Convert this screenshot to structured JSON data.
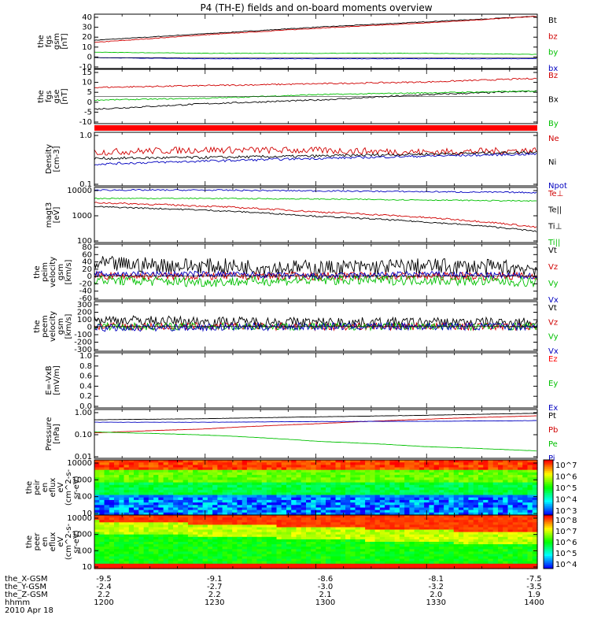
{
  "title": "P4 (TH-E) fields and on-board moments overview",
  "colors": {
    "black": "#000000",
    "red": "#d00000",
    "green": "#00c000",
    "blue": "#0000c0",
    "brightRed": "#ff0000"
  },
  "panels": [
    {
      "id": "fgs-gsm",
      "ylabel": [
        "the",
        "fgs",
        "gsm",
        "[nT]"
      ],
      "ticks": [
        "40",
        "30",
        "20",
        "10",
        "0",
        "-10"
      ],
      "legend": [
        {
          "label": "Bt",
          "color": "black"
        },
        {
          "label": "bz",
          "color": "red"
        },
        {
          "label": "by",
          "color": "green"
        },
        {
          "label": "bx",
          "color": "blue"
        }
      ]
    },
    {
      "id": "fgs-gse",
      "ylabel": [
        "the",
        "fgs",
        "gse",
        "[nT]"
      ],
      "ticks": [
        "15",
        "10",
        "5",
        "0",
        "-5",
        "-10"
      ],
      "legend": [
        {
          "label": "Bz",
          "color": "red"
        },
        {
          "label": "Bx",
          "color": "black"
        },
        {
          "label": "By",
          "color": "green"
        }
      ]
    },
    {
      "id": "density",
      "ylabel": [
        "Density",
        "[cm-3]"
      ],
      "ticks": [
        "1.0",
        "0.1"
      ],
      "legend": [
        {
          "label": "Ne",
          "color": "red"
        },
        {
          "label": "Ni",
          "color": "black"
        },
        {
          "label": "Npot",
          "color": "blue"
        }
      ]
    },
    {
      "id": "temperature",
      "ylabel": [
        "magt3",
        "[eV]"
      ],
      "ticks": [
        "10000",
        "1000",
        "100"
      ],
      "legend": [
        {
          "label": "Te⊥",
          "color": "red"
        },
        {
          "label": "Te||",
          "color": "black"
        },
        {
          "label": "Ti⊥",
          "color": "black"
        },
        {
          "label": "Ti||",
          "color": "green"
        }
      ]
    },
    {
      "id": "peim-velocity",
      "ylabel": [
        "the",
        "peim",
        "velocity",
        "gsm",
        "[km/s]"
      ],
      "ticks": [
        "80",
        "60",
        "40",
        "20",
        "0",
        "-20",
        "-40",
        "-60"
      ],
      "legend": [
        {
          "label": "Vt",
          "color": "black"
        },
        {
          "label": "Vz",
          "color": "red"
        },
        {
          "label": "Vy",
          "color": "green"
        },
        {
          "label": "Vx",
          "color": "blue"
        }
      ]
    },
    {
      "id": "peem-velocity",
      "ylabel": [
        "the",
        "peem",
        "velocity",
        "gsm",
        "[km/s]"
      ],
      "ticks": [
        "300",
        "200",
        "100",
        "0",
        "-100",
        "-200",
        "-300"
      ],
      "legend": [
        {
          "label": "Vt",
          "color": "black"
        },
        {
          "label": "Vz",
          "color": "red"
        },
        {
          "label": "Vy",
          "color": "green"
        },
        {
          "label": "Vx",
          "color": "blue"
        }
      ]
    },
    {
      "id": "exb",
      "ylabel": [
        "E=-VxB",
        "[mV/m]"
      ],
      "ticks": [
        "1.0",
        "0.8",
        "0.6",
        "0.4",
        "0.2",
        "0.0"
      ],
      "legend": [
        {
          "label": "Ez",
          "color": "brightRed"
        },
        {
          "label": "Ey",
          "color": "green"
        },
        {
          "label": "Ex",
          "color": "blue"
        }
      ]
    },
    {
      "id": "pressure",
      "ylabel": [
        "Pressure",
        "[nPa]"
      ],
      "ticks": [
        "1.00",
        "0.10",
        "0.01"
      ],
      "legend": [
        {
          "label": "Pt",
          "color": "black"
        },
        {
          "label": "Pb",
          "color": "red"
        },
        {
          "label": "Pe",
          "color": "green"
        },
        {
          "label": "Pi",
          "color": "blue"
        }
      ]
    },
    {
      "id": "peir-eflux",
      "ylabel": [
        "the",
        "peir",
        "en",
        "eflux",
        "eV",
        "(cm^2-s-",
        "sr-eV)"
      ],
      "ticks": [
        "10000",
        "1000",
        "100",
        "10"
      ],
      "colorbar": [
        "10^7",
        "10^6",
        "10^5",
        "10^4",
        "10^3"
      ]
    },
    {
      "id": "peer-eflux",
      "ylabel": [
        "the",
        "peer",
        "en",
        "eflux",
        "eV",
        "(cm^2-s-",
        "sr-eV)"
      ],
      "ticks": [
        "10000",
        "1000",
        "100",
        "10"
      ],
      "colorbar": [
        "10^8",
        "10^7",
        "10^6",
        "10^5",
        "10^4"
      ]
    }
  ],
  "ephemeris": {
    "rows": [
      {
        "label": "the_X-GSM",
        "values": [
          "-9.5",
          "-9.1",
          "-8.6",
          "-8.1",
          "-7.5"
        ]
      },
      {
        "label": "the_Y-GSM",
        "values": [
          "-2.4",
          "-2.7",
          "-3.0",
          "-3.2",
          "-3.5"
        ]
      },
      {
        "label": "the_Z-GSM",
        "values": [
          "2.2",
          "2.2",
          "2.1",
          "2.0",
          "1.9"
        ]
      },
      {
        "label": "hhmm",
        "values": [
          "1200",
          "1230",
          "1300",
          "1330",
          "1400"
        ]
      }
    ],
    "date": "2010 Apr 18"
  },
  "chart_data": [
    {
      "type": "line",
      "panel": "fgs-gsm",
      "x": [
        "1200",
        "1230",
        "1300",
        "1330",
        "1400"
      ],
      "ylim": [
        -10,
        40
      ],
      "series": [
        {
          "name": "Bt",
          "values": [
            16,
            22,
            28,
            33,
            38
          ]
        },
        {
          "name": "bz",
          "values": [
            14,
            21,
            27,
            32,
            38
          ]
        },
        {
          "name": "by",
          "values": [
            5,
            4,
            4,
            4,
            3
          ]
        },
        {
          "name": "bx",
          "values": [
            0,
            -1,
            -1,
            -1,
            -1
          ]
        }
      ]
    },
    {
      "type": "line",
      "panel": "fgs-gse",
      "x": [
        "1200",
        "1230",
        "1300",
        "1330",
        "1400"
      ],
      "ylim": [
        -15,
        15
      ],
      "series": [
        {
          "name": "Bz",
          "values": [
            5,
            6,
            7,
            8,
            10
          ]
        },
        {
          "name": "Bx",
          "values": [
            -7,
            -4,
            -2,
            1,
            3
          ]
        },
        {
          "name": "By",
          "values": [
            -2,
            -1,
            1,
            2,
            3
          ]
        }
      ]
    },
    {
      "type": "line",
      "panel": "density",
      "x": [
        "1200",
        "1230",
        "1300",
        "1330",
        "1400"
      ],
      "ylim": [
        0.1,
        1.5
      ],
      "log": true,
      "series": [
        {
          "name": "Ne",
          "values": [
            0.55,
            0.62,
            0.6,
            0.55,
            0.6
          ]
        },
        {
          "name": "Ni",
          "values": [
            0.4,
            0.42,
            0.45,
            0.5,
            0.55
          ]
        },
        {
          "name": "Npot",
          "values": [
            0.3,
            0.35,
            0.4,
            0.45,
            0.5
          ]
        }
      ]
    },
    {
      "type": "line",
      "panel": "temperature",
      "x": [
        "1200",
        "1230",
        "1300",
        "1330",
        "1400"
      ],
      "ylim": [
        100,
        10000
      ],
      "log": true,
      "series": [
        {
          "name": "Te⊥",
          "values": [
            2800,
            2100,
            1300,
            800,
            350
          ]
        },
        {
          "name": "Te||",
          "values": [
            2000,
            1500,
            900,
            550,
            250
          ]
        },
        {
          "name": "Ti⊥",
          "values": [
            8000,
            8000,
            7500,
            7000,
            6500
          ]
        },
        {
          "name": "Ti||",
          "values": [
            4000,
            4000,
            3800,
            3500,
            3200
          ]
        }
      ]
    },
    {
      "type": "line",
      "panel": "peim-velocity",
      "x": [
        "1200",
        "1230",
        "1300",
        "1330",
        "1400"
      ],
      "ylim": [
        -60,
        80
      ],
      "series": [
        {
          "name": "Vt",
          "values": [
            30,
            25,
            20,
            25,
            20
          ]
        },
        {
          "name": "Vz",
          "values": [
            0,
            0,
            0,
            0,
            0
          ]
        },
        {
          "name": "Vy",
          "values": [
            -10,
            -15,
            -10,
            -10,
            -15
          ]
        },
        {
          "name": "Vx",
          "values": [
            5,
            5,
            0,
            5,
            0
          ]
        }
      ]
    },
    {
      "type": "line",
      "panel": "peem-velocity",
      "x": [
        "1200",
        "1230",
        "1300",
        "1330",
        "1400"
      ],
      "ylim": [
        -300,
        300
      ],
      "series": [
        {
          "name": "Vt",
          "values": [
            80,
            60,
            50,
            50,
            50
          ]
        },
        {
          "name": "Vz",
          "values": [
            0,
            0,
            0,
            0,
            0
          ]
        },
        {
          "name": "Vy",
          "values": [
            0,
            0,
            0,
            0,
            0
          ]
        },
        {
          "name": "Vx",
          "values": [
            -20,
            -10,
            0,
            0,
            0
          ]
        }
      ]
    },
    {
      "type": "line",
      "panel": "exb",
      "x": [
        "1200",
        "1230",
        "1300",
        "1330",
        "1400"
      ],
      "ylim": [
        0,
        1
      ],
      "series": []
    },
    {
      "type": "line",
      "panel": "pressure",
      "x": [
        "1200",
        "1230",
        "1300",
        "1330",
        "1400"
      ],
      "ylim": [
        0.01,
        1
      ],
      "log": true,
      "series": [
        {
          "name": "Pt",
          "values": [
            0.38,
            0.42,
            0.5,
            0.58,
            0.7
          ]
        },
        {
          "name": "Pb",
          "values": [
            0.11,
            0.16,
            0.26,
            0.4,
            0.55
          ]
        },
        {
          "name": "Pe",
          "values": [
            0.12,
            0.09,
            0.05,
            0.03,
            0.02
          ]
        },
        {
          "name": "Pi",
          "values": [
            0.3,
            0.3,
            0.32,
            0.33,
            0.35
          ]
        }
      ]
    },
    {
      "type": "heatmap",
      "panel": "peir-eflux",
      "x": [
        "1200",
        "1230",
        "1300",
        "1330",
        "1400"
      ],
      "ylim": [
        10,
        10000
      ]
    },
    {
      "type": "heatmap",
      "panel": "peer-eflux",
      "x": [
        "1200",
        "1230",
        "1300",
        "1330",
        "1400"
      ],
      "ylim": [
        10,
        10000
      ]
    }
  ]
}
